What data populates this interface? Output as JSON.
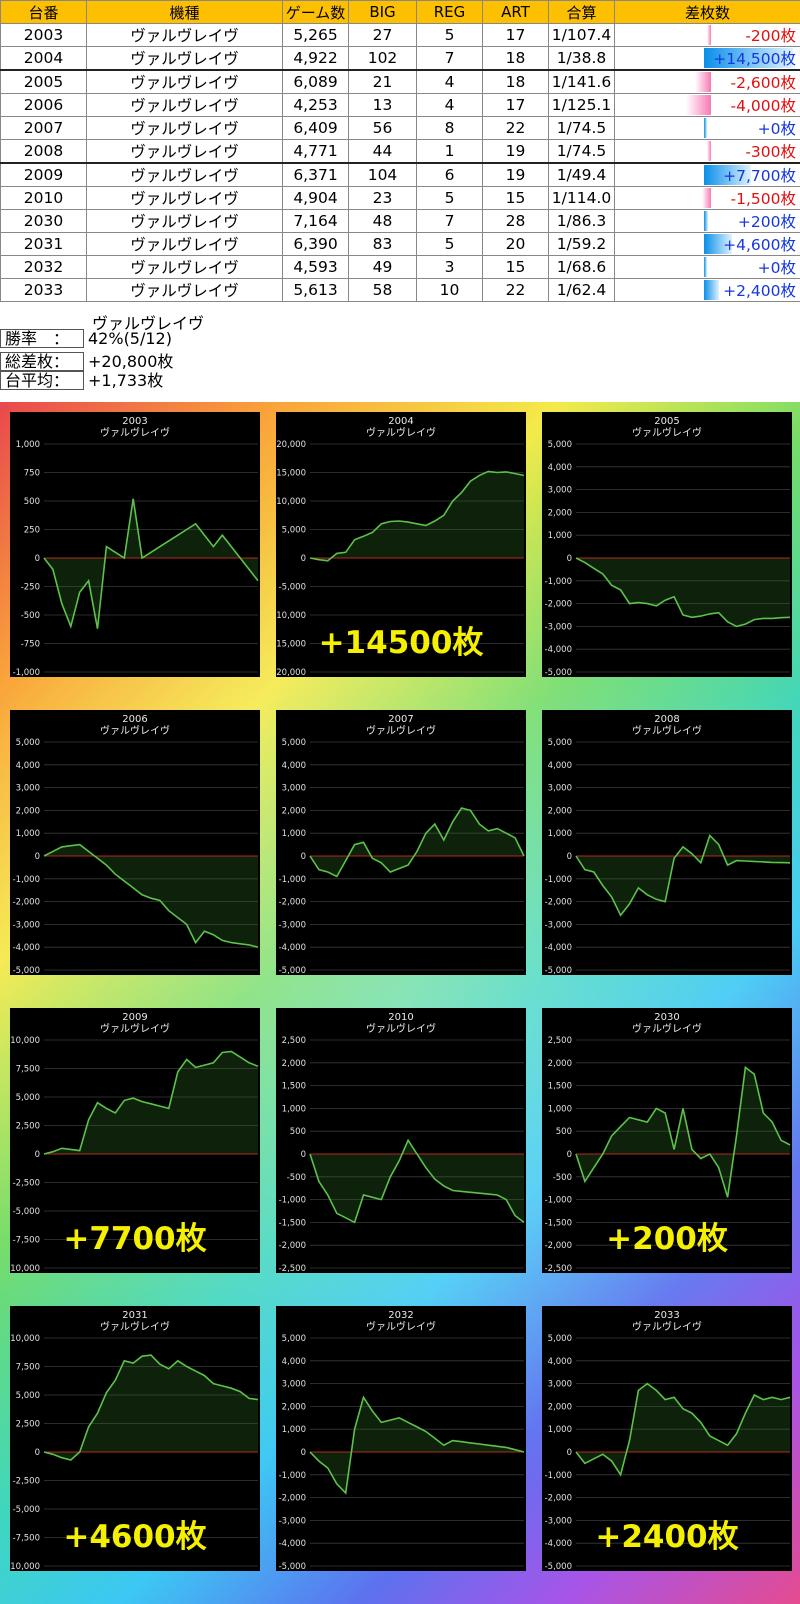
{
  "table": {
    "headers": [
      "台番",
      "機種",
      "ゲーム数",
      "BIG",
      "REG",
      "ART",
      "合算",
      "差枚数"
    ],
    "rows": [
      {
        "no": "2003",
        "model": "ヴァルヴレイヴ",
        "games": "5,265",
        "big": "27",
        "reg": "5",
        "art": "17",
        "ratio": "1/107.4",
        "diff": "-200枚",
        "diff_value": -200
      },
      {
        "no": "2004",
        "model": "ヴァルヴレイヴ",
        "games": "4,922",
        "big": "102",
        "reg": "7",
        "art": "18",
        "ratio": "1/38.8",
        "diff": "+14,500枚",
        "diff_value": 14500
      },
      {
        "no": "2005",
        "model": "ヴァルヴレイヴ",
        "games": "6,089",
        "big": "21",
        "reg": "4",
        "art": "18",
        "ratio": "1/141.6",
        "diff": "-2,600枚",
        "diff_value": -2600
      },
      {
        "no": "2006",
        "model": "ヴァルヴレイヴ",
        "games": "4,253",
        "big": "13",
        "reg": "4",
        "art": "17",
        "ratio": "1/125.1",
        "diff": "-4,000枚",
        "diff_value": -4000
      },
      {
        "no": "2007",
        "model": "ヴァルヴレイヴ",
        "games": "6,409",
        "big": "56",
        "reg": "8",
        "art": "22",
        "ratio": "1/74.5",
        "diff": "+0枚",
        "diff_value": 0
      },
      {
        "no": "2008",
        "model": "ヴァルヴレイヴ",
        "games": "4,771",
        "big": "44",
        "reg": "1",
        "art": "19",
        "ratio": "1/74.5",
        "diff": "-300枚",
        "diff_value": -300
      },
      {
        "no": "2009",
        "model": "ヴァルヴレイヴ",
        "games": "6,371",
        "big": "104",
        "reg": "6",
        "art": "19",
        "ratio": "1/49.4",
        "diff": "+7,700枚",
        "diff_value": 7700
      },
      {
        "no": "2010",
        "model": "ヴァルヴレイヴ",
        "games": "4,904",
        "big": "23",
        "reg": "5",
        "art": "15",
        "ratio": "1/114.0",
        "diff": "-1,500枚",
        "diff_value": -1500
      },
      {
        "no": "2030",
        "model": "ヴァルヴレイヴ",
        "games": "7,164",
        "big": "48",
        "reg": "7",
        "art": "28",
        "ratio": "1/86.3",
        "diff": "+200枚",
        "diff_value": 200
      },
      {
        "no": "2031",
        "model": "ヴァルヴレイヴ",
        "games": "6,390",
        "big": "83",
        "reg": "5",
        "art": "20",
        "ratio": "1/59.2",
        "diff": "+4,600枚",
        "diff_value": 4600
      },
      {
        "no": "2032",
        "model": "ヴァルヴレイヴ",
        "games": "4,593",
        "big": "49",
        "reg": "3",
        "art": "15",
        "ratio": "1/68.6",
        "diff": "+0枚",
        "diff_value": 0
      },
      {
        "no": "2033",
        "model": "ヴァルヴレイヴ",
        "games": "5,613",
        "big": "58",
        "reg": "10",
        "art": "22",
        "ratio": "1/62.4",
        "diff": "+2,400枚",
        "diff_value": 2400
      }
    ]
  },
  "summary": {
    "model": "ヴァルヴレイヴ",
    "win_rate_label": "勝率　：",
    "win_rate": "42%(5/12)",
    "total_label": "総差枚：",
    "total": "+20,800枚",
    "avg_label": "台平均：",
    "avg": "+1,733枚"
  },
  "colors": {
    "header_bg": "#fcc000",
    "negative": "#e01010",
    "positive": "#1437e0",
    "line": "#5cc24a",
    "zero_line": "#c81e1e"
  },
  "chart_data": [
    {
      "type": "line",
      "title": "2003",
      "subtitle": "ヴァルヴレイヴ",
      "ylim": [
        -1000,
        1000
      ],
      "yticks": [
        1000,
        750,
        500,
        250,
        0,
        -250,
        -500,
        -750,
        -1000
      ],
      "overlay": "",
      "values": [
        0,
        -100,
        -400,
        -600,
        -300,
        -200,
        -620,
        100,
        50,
        0,
        520,
        0,
        50,
        100,
        150,
        200,
        250,
        300,
        200,
        100,
        200,
        100,
        0,
        -100,
        -200
      ]
    },
    {
      "type": "line",
      "title": "2004",
      "subtitle": "ヴァルヴレイヴ",
      "ylim": [
        -20000,
        20000
      ],
      "yticks": [
        20000,
        15000,
        10000,
        5000,
        0,
        -5000,
        -10000,
        -15000,
        -20000
      ],
      "overlay": "+14500枚",
      "values": [
        0,
        -300,
        -500,
        800,
        1000,
        3200,
        3800,
        4500,
        6000,
        6400,
        6500,
        6300,
        6000,
        5700,
        6500,
        7500,
        10000,
        11500,
        13500,
        14500,
        15200,
        15000,
        15100,
        14800,
        14500
      ]
    },
    {
      "type": "line",
      "title": "2005",
      "subtitle": "ヴァルヴレイヴ",
      "ylim": [
        -5000,
        5000
      ],
      "yticks": [
        5000,
        4000,
        3000,
        2000,
        1000,
        0,
        -1000,
        -2000,
        -3000,
        -4000,
        -5000
      ],
      "overlay": "",
      "values": [
        0,
        -200,
        -450,
        -700,
        -1200,
        -1400,
        -2000,
        -1950,
        -2000,
        -2100,
        -1850,
        -1700,
        -2500,
        -2600,
        -2550,
        -2450,
        -2400,
        -2800,
        -3000,
        -2900,
        -2700,
        -2650,
        -2650,
        -2620,
        -2600
      ]
    },
    {
      "type": "line",
      "title": "2006",
      "subtitle": "ヴァルヴレイヴ",
      "ylim": [
        -5000,
        5000
      ],
      "yticks": [
        5000,
        4000,
        3000,
        2000,
        1000,
        0,
        -1000,
        -2000,
        -3000,
        -4000,
        -5000
      ],
      "overlay": "",
      "values": [
        0,
        200,
        400,
        450,
        500,
        200,
        -100,
        -400,
        -800,
        -1100,
        -1400,
        -1700,
        -1850,
        -1950,
        -2400,
        -2700,
        -3000,
        -3800,
        -3300,
        -3450,
        -3700,
        -3800,
        -3850,
        -3900,
        -4000
      ]
    },
    {
      "type": "line",
      "title": "2007",
      "subtitle": "ヴァルヴレイヴ",
      "ylim": [
        -5000,
        5000
      ],
      "yticks": [
        5000,
        4000,
        3000,
        2000,
        1000,
        0,
        -1000,
        -2000,
        -3000,
        -4000,
        -5000
      ],
      "overlay": "",
      "values": [
        0,
        -600,
        -700,
        -900,
        -200,
        500,
        600,
        -100,
        -300,
        -700,
        -550,
        -400,
        200,
        1000,
        1400,
        700,
        1500,
        2100,
        2000,
        1400,
        1100,
        1200,
        1000,
        800,
        0
      ]
    },
    {
      "type": "line",
      "title": "2008",
      "subtitle": "ヴァルヴレイヴ",
      "ylim": [
        -5000,
        5000
      ],
      "yticks": [
        5000,
        4000,
        3000,
        2000,
        1000,
        0,
        -1000,
        -2000,
        -3000,
        -4000,
        -5000
      ],
      "overlay": "",
      "values": [
        0,
        -600,
        -700,
        -1300,
        -1800,
        -2600,
        -2100,
        -1400,
        -1700,
        -1900,
        -2000,
        -100,
        400,
        100,
        -300,
        900,
        500,
        -400,
        -200,
        -220,
        -240,
        -260,
        -280,
        -290,
        -300
      ]
    },
    {
      "type": "line",
      "title": "2009",
      "subtitle": "ヴァルヴレイヴ",
      "ylim": [
        -10000,
        10000
      ],
      "yticks": [
        10000,
        7500,
        5000,
        2500,
        0,
        -2500,
        -5000,
        -7500,
        -10000
      ],
      "overlay": "+7700枚",
      "values": [
        0,
        200,
        500,
        400,
        300,
        3000,
        4500,
        4000,
        3600,
        4700,
        4900,
        4600,
        4400,
        4200,
        4000,
        7200,
        8300,
        7600,
        7800,
        8000,
        8900,
        9000,
        8500,
        8000,
        7700
      ]
    },
    {
      "type": "line",
      "title": "2010",
      "subtitle": "ヴァルヴレイヴ",
      "ylim": [
        -2500,
        2500
      ],
      "yticks": [
        2500,
        2000,
        1500,
        1000,
        500,
        0,
        -500,
        -1000,
        -1500,
        -2000,
        -2500
      ],
      "overlay": "",
      "values": [
        0,
        -600,
        -900,
        -1300,
        -1400,
        -1500,
        -900,
        -950,
        -1000,
        -500,
        -150,
        300,
        0,
        -300,
        -550,
        -700,
        -800,
        -820,
        -840,
        -860,
        -880,
        -900,
        -1000,
        -1350,
        -1500
      ]
    },
    {
      "type": "line",
      "title": "2030",
      "subtitle": "ヴァルヴレイヴ",
      "ylim": [
        -2500,
        2500
      ],
      "yticks": [
        2500,
        2000,
        1500,
        1000,
        500,
        0,
        -500,
        -1000,
        -1500,
        -2000,
        -2500
      ],
      "overlay": "+200枚",
      "values": [
        0,
        -600,
        -300,
        0,
        400,
        600,
        800,
        750,
        700,
        1000,
        900,
        100,
        1000,
        100,
        -100,
        0,
        -300,
        -950,
        400,
        1900,
        1750,
        900,
        700,
        300,
        200
      ]
    },
    {
      "type": "line",
      "title": "2031",
      "subtitle": "ヴァルヴレイヴ",
      "ylim": [
        -10000,
        10000
      ],
      "yticks": [
        10000,
        7500,
        5000,
        2500,
        0,
        -2500,
        -5000,
        -7500,
        -10000
      ],
      "overlay": "+4600枚",
      "values": [
        0,
        -200,
        -500,
        -700,
        0,
        2200,
        3400,
        5200,
        6300,
        8000,
        7800,
        8400,
        8500,
        7700,
        7300,
        8000,
        7500,
        7100,
        6700,
        6000,
        5800,
        5600,
        5300,
        4700,
        4600
      ]
    },
    {
      "type": "line",
      "title": "2032",
      "subtitle": "ヴァルヴレイヴ",
      "ylim": [
        -5000,
        5000
      ],
      "yticks": [
        5000,
        4000,
        3000,
        2000,
        1000,
        0,
        -1000,
        -2000,
        -3000,
        -4000,
        -5000
      ],
      "overlay": "",
      "values": [
        0,
        -400,
        -700,
        -1400,
        -1800,
        1000,
        2400,
        1800,
        1300,
        1400,
        1500,
        1300,
        1100,
        900,
        600,
        300,
        500,
        450,
        400,
        350,
        300,
        250,
        200,
        100,
        0
      ]
    },
    {
      "type": "line",
      "title": "2033",
      "subtitle": "ヴァルヴレイヴ",
      "ylim": [
        -5000,
        5000
      ],
      "yticks": [
        5000,
        4000,
        3000,
        2000,
        1000,
        0,
        -1000,
        -2000,
        -3000,
        -4000,
        -5000
      ],
      "overlay": "+2400枚",
      "values": [
        0,
        -500,
        -300,
        -100,
        -400,
        -1000,
        500,
        2700,
        3000,
        2700,
        2300,
        2400,
        1900,
        1700,
        1300,
        700,
        500,
        300,
        800,
        1700,
        2500,
        2300,
        2400,
        2300,
        2400
      ]
    }
  ]
}
